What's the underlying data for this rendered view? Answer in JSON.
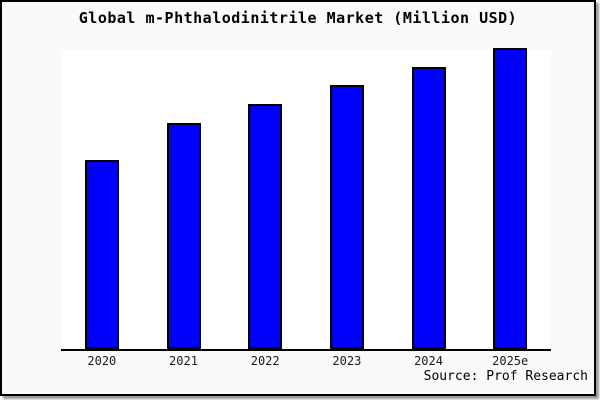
{
  "title": "Global m-Phthalodinitrile Market (Million USD)",
  "source": "Source: Prof Research",
  "colors": {
    "bar": "#0000ff",
    "bar_border": "#000000",
    "figure_background": "#fafafa",
    "plot_background": "#ffffff",
    "frame_border": "#000000",
    "shadow": "#9a9a9a",
    "text": "#000000"
  },
  "chart_data": {
    "type": "bar",
    "title": "Global m-Phthalodinitrile Market (Million USD)",
    "categories": [
      "2020",
      "2021",
      "2022",
      "2023",
      "2024",
      "2025e"
    ],
    "values": [
      62.8,
      75.1,
      81.4,
      87.7,
      93.7,
      100
    ],
    "values_note": "No numeric y-axis is shown in the figure; values are estimated relative bar heights as a percent of the tallest bar (2025e = 100).",
    "xlabel": "",
    "ylabel": "",
    "ylim": [
      0,
      100
    ],
    "grid": false,
    "legend": null,
    "source": "Source: Prof Research"
  }
}
